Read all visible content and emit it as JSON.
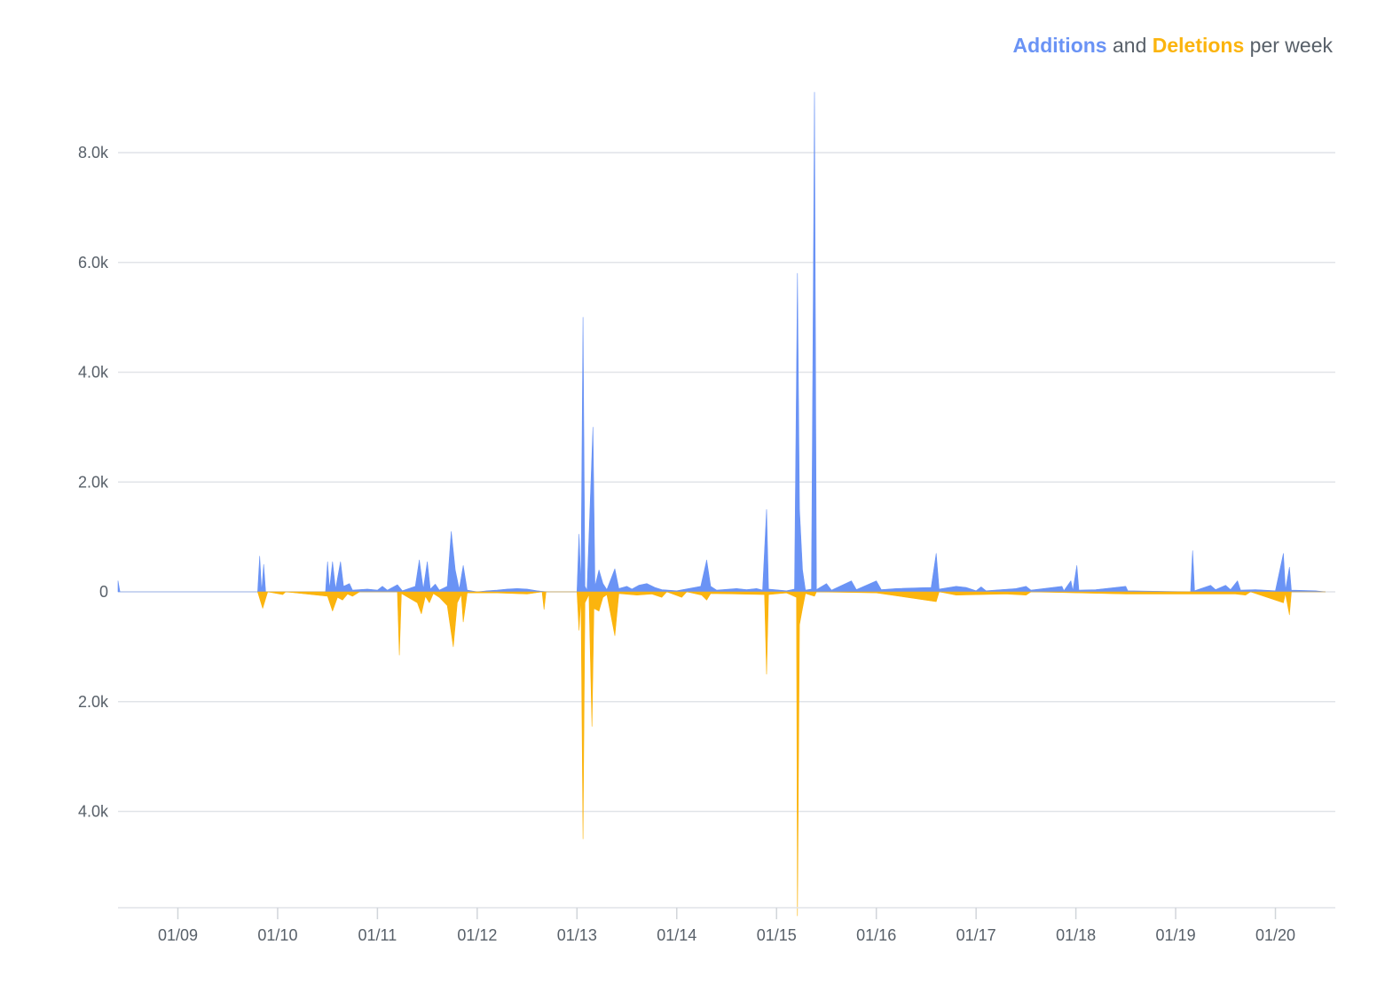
{
  "chart_data": {
    "type": "area",
    "title": {
      "additions": "Additions",
      "and": " and ",
      "deletions": "Deletions",
      "suffix": " per week"
    },
    "ylim": [
      -5900,
      9100
    ],
    "grid": true,
    "y_ticks": [
      {
        "value": 8000,
        "label": "8.0k"
      },
      {
        "value": 6000,
        "label": "6.0k"
      },
      {
        "value": 4000,
        "label": "4.0k"
      },
      {
        "value": 2000,
        "label": "2.0k"
      },
      {
        "value": 0,
        "label": "0"
      },
      {
        "value": -2000,
        "label": "2.0k"
      },
      {
        "value": -4000,
        "label": "4.0k"
      }
    ],
    "xlim": [
      2008.4,
      2020.6
    ],
    "x_ticks": [
      {
        "value": 2009,
        "label": "01/09"
      },
      {
        "value": 2010,
        "label": "01/10"
      },
      {
        "value": 2011,
        "label": "01/11"
      },
      {
        "value": 2012,
        "label": "01/12"
      },
      {
        "value": 2013,
        "label": "01/13"
      },
      {
        "value": 2014,
        "label": "01/14"
      },
      {
        "value": 2015,
        "label": "01/15"
      },
      {
        "value": 2016,
        "label": "01/16"
      },
      {
        "value": 2017,
        "label": "01/17"
      },
      {
        "value": 2018,
        "label": "01/18"
      },
      {
        "value": 2019,
        "label": "01/19"
      },
      {
        "value": 2020,
        "label": "01/20"
      }
    ],
    "series": [
      {
        "name": "Additions",
        "color": "#6a93f5",
        "points": [
          [
            2008.4,
            200
          ],
          [
            2008.42,
            0
          ],
          [
            2009.8,
            0
          ],
          [
            2009.82,
            650
          ],
          [
            2009.84,
            0
          ],
          [
            2009.86,
            500
          ],
          [
            2009.88,
            0
          ],
          [
            2010.48,
            0
          ],
          [
            2010.5,
            550
          ],
          [
            2010.52,
            50
          ],
          [
            2010.55,
            550
          ],
          [
            2010.58,
            50
          ],
          [
            2010.63,
            550
          ],
          [
            2010.66,
            100
          ],
          [
            2010.72,
            150
          ],
          [
            2010.75,
            30
          ],
          [
            2010.9,
            50
          ],
          [
            2011.0,
            30
          ],
          [
            2011.05,
            100
          ],
          [
            2011.1,
            30
          ],
          [
            2011.2,
            130
          ],
          [
            2011.25,
            20
          ],
          [
            2011.38,
            100
          ],
          [
            2011.42,
            580
          ],
          [
            2011.46,
            50
          ],
          [
            2011.5,
            550
          ],
          [
            2011.53,
            50
          ],
          [
            2011.58,
            140
          ],
          [
            2011.62,
            30
          ],
          [
            2011.7,
            100
          ],
          [
            2011.74,
            1100
          ],
          [
            2011.78,
            400
          ],
          [
            2011.82,
            50
          ],
          [
            2011.86,
            480
          ],
          [
            2011.9,
            30
          ],
          [
            2012.0,
            0
          ],
          [
            2012.1,
            20
          ],
          [
            2012.2,
            30
          ],
          [
            2012.3,
            50
          ],
          [
            2012.4,
            60
          ],
          [
            2012.5,
            50
          ],
          [
            2012.6,
            20
          ],
          [
            2012.7,
            0
          ],
          [
            2013.0,
            0
          ],
          [
            2013.02,
            1050
          ],
          [
            2013.04,
            100
          ],
          [
            2013.06,
            5000
          ],
          [
            2013.08,
            100
          ],
          [
            2013.1,
            30
          ],
          [
            2013.16,
            3000
          ],
          [
            2013.18,
            100
          ],
          [
            2013.22,
            400
          ],
          [
            2013.26,
            150
          ],
          [
            2013.3,
            40
          ],
          [
            2013.38,
            420
          ],
          [
            2013.42,
            60
          ],
          [
            2013.5,
            100
          ],
          [
            2013.55,
            50
          ],
          [
            2013.62,
            120
          ],
          [
            2013.7,
            150
          ],
          [
            2013.78,
            80
          ],
          [
            2013.85,
            40
          ],
          [
            2014.0,
            20
          ],
          [
            2014.24,
            100
          ],
          [
            2014.3,
            580
          ],
          [
            2014.34,
            100
          ],
          [
            2014.4,
            30
          ],
          [
            2014.6,
            60
          ],
          [
            2014.7,
            40
          ],
          [
            2014.8,
            60
          ],
          [
            2014.86,
            30
          ],
          [
            2014.9,
            1500
          ],
          [
            2014.92,
            50
          ],
          [
            2015.1,
            20
          ],
          [
            2015.18,
            50
          ],
          [
            2015.21,
            5800
          ],
          [
            2015.23,
            1500
          ],
          [
            2015.26,
            400
          ],
          [
            2015.29,
            30
          ],
          [
            2015.35,
            50
          ],
          [
            2015.38,
            9100
          ],
          [
            2015.4,
            40
          ],
          [
            2015.5,
            150
          ],
          [
            2015.55,
            30
          ],
          [
            2015.75,
            200
          ],
          [
            2015.8,
            40
          ],
          [
            2016.0,
            200
          ],
          [
            2016.05,
            40
          ],
          [
            2016.2,
            60
          ],
          [
            2016.55,
            80
          ],
          [
            2016.6,
            700
          ],
          [
            2016.63,
            50
          ],
          [
            2016.8,
            100
          ],
          [
            2016.9,
            80
          ],
          [
            2017.0,
            20
          ],
          [
            2017.05,
            90
          ],
          [
            2017.1,
            20
          ],
          [
            2017.4,
            60
          ],
          [
            2017.5,
            100
          ],
          [
            2017.55,
            30
          ],
          [
            2017.86,
            100
          ],
          [
            2017.88,
            20
          ],
          [
            2017.95,
            200
          ],
          [
            2017.97,
            20
          ],
          [
            2018.01,
            480
          ],
          [
            2018.03,
            30
          ],
          [
            2018.2,
            40
          ],
          [
            2018.5,
            100
          ],
          [
            2018.52,
            20
          ],
          [
            2019.15,
            0
          ],
          [
            2019.17,
            750
          ],
          [
            2019.19,
            20
          ],
          [
            2019.35,
            120
          ],
          [
            2019.4,
            40
          ],
          [
            2019.5,
            120
          ],
          [
            2019.55,
            40
          ],
          [
            2019.62,
            200
          ],
          [
            2019.65,
            30
          ],
          [
            2019.8,
            40
          ],
          [
            2020.0,
            20
          ],
          [
            2020.08,
            700
          ],
          [
            2020.1,
            30
          ],
          [
            2020.14,
            450
          ],
          [
            2020.16,
            30
          ],
          [
            2020.4,
            20
          ],
          [
            2020.5,
            0
          ]
        ]
      },
      {
        "name": "Deletions",
        "color": "#fbb40e",
        "points": [
          [
            2009.8,
            0
          ],
          [
            2009.85,
            -300
          ],
          [
            2009.9,
            0
          ],
          [
            2010.05,
            -50
          ],
          [
            2010.08,
            0
          ],
          [
            2010.5,
            -80
          ],
          [
            2010.55,
            -350
          ],
          [
            2010.6,
            -100
          ],
          [
            2010.65,
            -150
          ],
          [
            2010.7,
            -40
          ],
          [
            2010.75,
            -80
          ],
          [
            2010.82,
            0
          ],
          [
            2011.2,
            0
          ],
          [
            2011.22,
            -1150
          ],
          [
            2011.24,
            -30
          ],
          [
            2011.4,
            -200
          ],
          [
            2011.44,
            -400
          ],
          [
            2011.48,
            -80
          ],
          [
            2011.52,
            -200
          ],
          [
            2011.56,
            -30
          ],
          [
            2011.62,
            -100
          ],
          [
            2011.7,
            -250
          ],
          [
            2011.76,
            -1000
          ],
          [
            2011.8,
            -200
          ],
          [
            2011.84,
            -50
          ],
          [
            2011.86,
            -550
          ],
          [
            2011.9,
            -20
          ],
          [
            2012.2,
            -20
          ],
          [
            2012.5,
            -40
          ],
          [
            2012.65,
            0
          ],
          [
            2012.67,
            -320
          ],
          [
            2012.69,
            0
          ],
          [
            2013.0,
            0
          ],
          [
            2013.02,
            -700
          ],
          [
            2013.04,
            -100
          ],
          [
            2013.06,
            -4500
          ],
          [
            2013.08,
            -200
          ],
          [
            2013.12,
            -50
          ],
          [
            2013.15,
            -2450
          ],
          [
            2013.17,
            -300
          ],
          [
            2013.22,
            -350
          ],
          [
            2013.26,
            -100
          ],
          [
            2013.3,
            -50
          ],
          [
            2013.38,
            -800
          ],
          [
            2013.42,
            -30
          ],
          [
            2013.6,
            -60
          ],
          [
            2013.75,
            -40
          ],
          [
            2013.85,
            -100
          ],
          [
            2013.9,
            0
          ],
          [
            2014.05,
            -100
          ],
          [
            2014.1,
            0
          ],
          [
            2014.25,
            -60
          ],
          [
            2014.3,
            -150
          ],
          [
            2014.34,
            -30
          ],
          [
            2014.6,
            -40
          ],
          [
            2014.88,
            -50
          ],
          [
            2014.9,
            -1500
          ],
          [
            2014.92,
            -50
          ],
          [
            2015.1,
            -20
          ],
          [
            2015.2,
            -100
          ],
          [
            2015.21,
            -5900
          ],
          [
            2015.23,
            -600
          ],
          [
            2015.26,
            -300
          ],
          [
            2015.29,
            -30
          ],
          [
            2015.38,
            -80
          ],
          [
            2015.4,
            0
          ],
          [
            2016.0,
            -20
          ],
          [
            2016.6,
            -180
          ],
          [
            2016.63,
            0
          ],
          [
            2016.8,
            -60
          ],
          [
            2017.3,
            -40
          ],
          [
            2017.5,
            -60
          ],
          [
            2017.55,
            0
          ],
          [
            2018.5,
            -40
          ],
          [
            2019.6,
            -40
          ],
          [
            2019.7,
            -60
          ],
          [
            2019.75,
            0
          ],
          [
            2020.08,
            -200
          ],
          [
            2020.1,
            -30
          ],
          [
            2020.14,
            -420
          ],
          [
            2020.16,
            0
          ],
          [
            2020.5,
            0
          ]
        ]
      }
    ]
  }
}
